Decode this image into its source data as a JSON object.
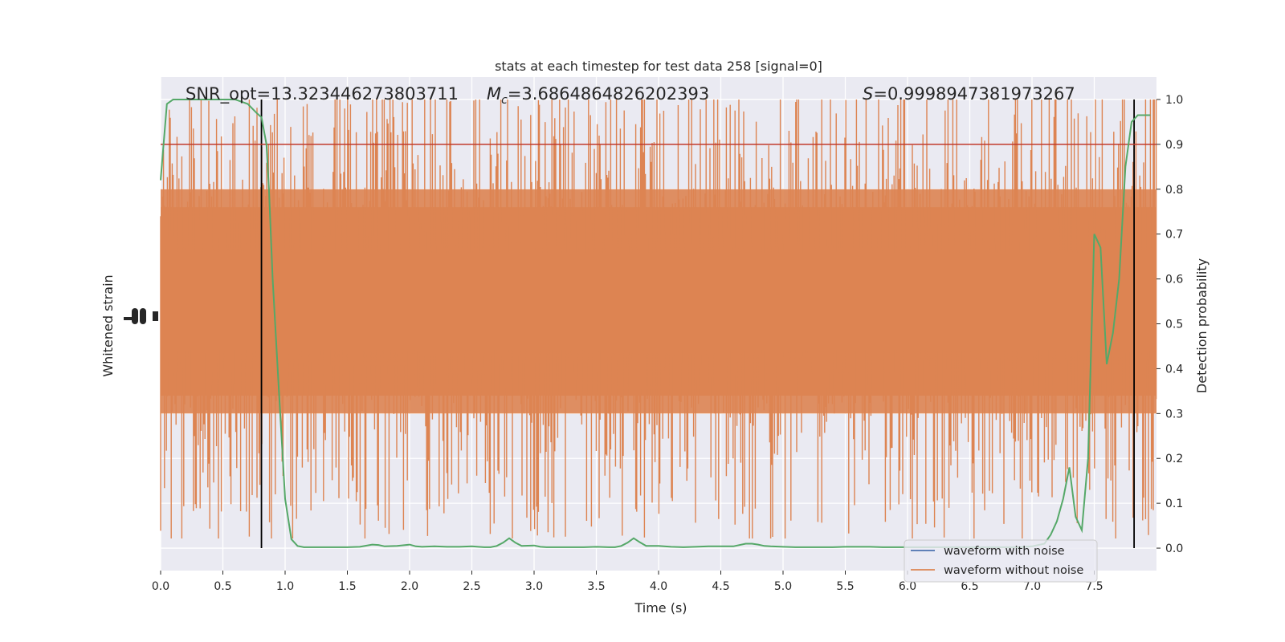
{
  "chart_data": {
    "type": "line",
    "title": "stats at each timestep for test data 258 [signal=0]",
    "xlabel": "Time (s)",
    "ylabel_left": "Whitened strain",
    "ylabel_right": "Detection probability",
    "xlim": [
      0.0,
      8.0
    ],
    "ylim_right": [
      -0.05,
      1.05
    ],
    "x_ticks": [
      "0.0",
      "0.5",
      "1.0",
      "1.5",
      "2.0",
      "2.5",
      "3.0",
      "3.5",
      "4.0",
      "4.5",
      "5.0",
      "5.5",
      "6.0",
      "6.5",
      "7.0",
      "7.5"
    ],
    "x_tick_values": [
      0.0,
      0.5,
      1.0,
      1.5,
      2.0,
      2.5,
      3.0,
      3.5,
      4.0,
      4.5,
      5.0,
      5.5,
      6.0,
      6.5,
      7.0,
      7.5
    ],
    "y_ticks_right": [
      "0.0",
      "0.1",
      "0.2",
      "0.3",
      "0.4",
      "0.5",
      "0.6",
      "0.7",
      "0.8",
      "0.9",
      "1.0"
    ],
    "y_tick_values_right": [
      0.0,
      0.1,
      0.2,
      0.3,
      0.4,
      0.5,
      0.6,
      0.7,
      0.8,
      0.9,
      1.0
    ],
    "annotations": {
      "snr": "SNR_opt=13.323446273803711",
      "mc_symbol": "M",
      "mc_sub": "c",
      "mc_value": "=3.6864864826202393",
      "s_symbol": "S",
      "s_value": "=0.9998947381973267"
    },
    "threshold": {
      "y": 0.9,
      "color": "#c0392b"
    },
    "vertical_lines": [
      {
        "x": 0.81
      },
      {
        "x": 7.82
      }
    ],
    "grid": true,
    "legend_position": "lower-right",
    "series": [
      {
        "name": "waveform with noise",
        "color": "#4c72b0"
      },
      {
        "name": "waveform without noise",
        "color": "#dd8452"
      },
      {
        "color": "#55a868",
        "x": [
          0.0,
          0.05,
          0.1,
          0.2,
          0.3,
          0.4,
          0.5,
          0.6,
          0.7,
          0.77,
          0.81,
          0.85,
          0.87,
          0.9,
          0.95,
          1.0,
          1.05,
          1.1,
          1.15,
          1.2,
          1.3,
          1.4,
          1.5,
          1.6,
          1.7,
          1.75,
          1.8,
          1.9,
          2.0,
          2.05,
          2.1,
          2.2,
          2.3,
          2.4,
          2.5,
          2.55,
          2.6,
          2.65,
          2.7,
          2.75,
          2.8,
          2.85,
          2.9,
          3.0,
          3.05,
          3.1,
          3.2,
          3.3,
          3.4,
          3.5,
          3.6,
          3.65,
          3.7,
          3.75,
          3.8,
          3.85,
          3.9,
          4.0,
          4.1,
          4.2,
          4.3,
          4.4,
          4.5,
          4.6,
          4.7,
          4.75,
          4.8,
          4.85,
          4.9,
          5.0,
          5.1,
          5.2,
          5.3,
          5.4,
          5.5,
          5.6,
          5.7,
          5.8,
          5.9,
          6.0,
          6.1,
          6.2,
          6.3,
          6.4,
          6.5,
          6.6,
          6.7,
          6.8,
          6.9,
          7.0,
          7.1,
          7.15,
          7.2,
          7.25,
          7.3,
          7.35,
          7.4,
          7.45,
          7.5,
          7.55,
          7.6,
          7.65,
          7.7,
          7.75,
          7.8,
          7.85,
          7.9,
          7.95
        ],
        "y": [
          0.82,
          0.99,
          1.0,
          1.0,
          1.0,
          1.0,
          1.0,
          1.0,
          0.99,
          0.97,
          0.96,
          0.9,
          0.8,
          0.6,
          0.35,
          0.11,
          0.02,
          0.005,
          0.002,
          0.002,
          0.002,
          0.002,
          0.002,
          0.003,
          0.008,
          0.007,
          0.004,
          0.005,
          0.008,
          0.004,
          0.003,
          0.004,
          0.003,
          0.003,
          0.004,
          0.003,
          0.002,
          0.002,
          0.005,
          0.012,
          0.022,
          0.012,
          0.005,
          0.006,
          0.003,
          0.002,
          0.002,
          0.002,
          0.002,
          0.003,
          0.002,
          0.002,
          0.005,
          0.012,
          0.022,
          0.013,
          0.005,
          0.005,
          0.003,
          0.002,
          0.003,
          0.004,
          0.004,
          0.004,
          0.01,
          0.01,
          0.008,
          0.005,
          0.004,
          0.003,
          0.002,
          0.002,
          0.002,
          0.002,
          0.003,
          0.003,
          0.003,
          0.002,
          0.002,
          0.002,
          0.002,
          0.002,
          0.002,
          0.002,
          0.002,
          0.002,
          0.002,
          0.002,
          0.002,
          0.004,
          0.01,
          0.03,
          0.06,
          0.11,
          0.18,
          0.07,
          0.04,
          0.2,
          0.7,
          0.67,
          0.41,
          0.48,
          0.6,
          0.85,
          0.95,
          0.965,
          0.965,
          0.965
        ]
      }
    ]
  }
}
